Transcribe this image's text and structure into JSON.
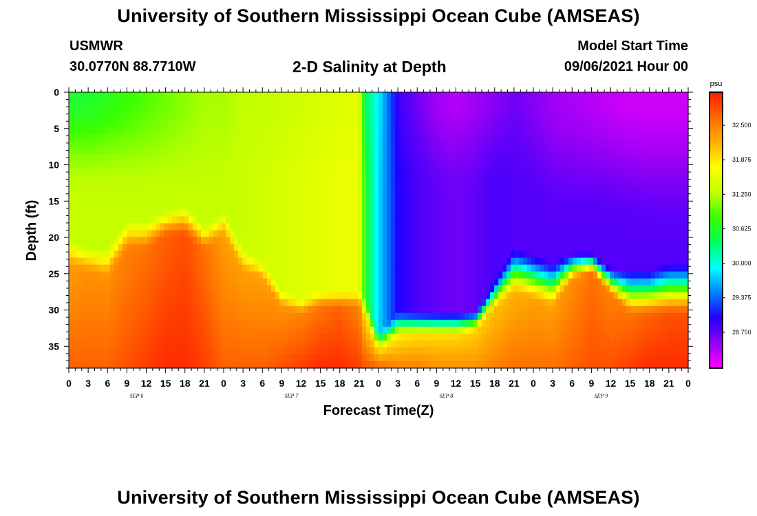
{
  "header": {
    "title": "University of Southern Mississippi Ocean Cube (AMSEAS)",
    "station": "USMWR",
    "coordinates": "30.0770N  88.7710W",
    "subtitle": "2-D Salinity at Depth",
    "model_start_label": "Model Start Time",
    "model_start_value": "09/06/2021 Hour 00"
  },
  "footer": {
    "title": "University of Southern Mississippi Ocean Cube (AMSEAS)"
  },
  "chart_data": {
    "type": "heatmap",
    "title": "2-D Salinity at Depth",
    "xlabel": "Forecast Time(Z)",
    "ylabel": "Depth (ft)",
    "x_tick_labels": [
      "0",
      "3",
      "6",
      "9",
      "12",
      "15",
      "18",
      "21",
      "0",
      "3",
      "6",
      "9",
      "12",
      "15",
      "18",
      "21",
      "0",
      "3",
      "6",
      "9",
      "12",
      "15",
      "18",
      "21",
      "0",
      "3",
      "6",
      "9",
      "12",
      "15",
      "18",
      "21",
      "0"
    ],
    "x_range_hours": [
      0,
      96
    ],
    "date_labels": [
      {
        "label": "SEP 6",
        "hour": 10.5
      },
      {
        "label": "SEP 7",
        "hour": 34.5
      },
      {
        "label": "SEP 8",
        "hour": 58.5
      },
      {
        "label": "SEP 9",
        "hour": 82.5
      }
    ],
    "y_ticks": [
      0,
      5,
      10,
      15,
      20,
      25,
      30,
      35
    ],
    "y_range": [
      0,
      38
    ],
    "y_inverted": true,
    "colorbar": {
      "unit": "psu",
      "tick_labels": [
        "32.500",
        "31.875",
        "31.250",
        "30.625",
        "30.000",
        "29.375",
        "28.750"
      ],
      "tick_values": [
        32.5,
        31.875,
        31.25,
        30.625,
        30.0,
        29.375,
        28.75
      ],
      "range": [
        28.1,
        33.1
      ],
      "colors": [
        "#ff00ff",
        "#9400f5",
        "#2000ff",
        "#0080ff",
        "#00ffff",
        "#00ff60",
        "#3aff00",
        "#c0ff00",
        "#ffff00",
        "#ffb000",
        "#ff6a00",
        "#ff1a00"
      ]
    },
    "profile_hours": [
      0,
      3,
      6,
      9,
      12,
      15,
      18,
      21,
      24,
      27,
      30,
      33,
      36,
      39,
      42,
      45,
      46,
      48,
      51,
      54,
      57,
      60,
      63,
      66,
      69,
      72,
      75,
      78,
      81,
      84,
      87,
      90,
      93,
      96
    ],
    "salinity_profiles": [
      {
        "hour": 0,
        "surface": 30.6,
        "mid_depth": 14,
        "mid": 31.3,
        "top_depth": 20,
        "bottom_depth": 24,
        "bottom": 32.3,
        "deep": 32.7
      },
      {
        "hour": 3,
        "surface": 30.6,
        "mid_depth": 14,
        "mid": 31.3,
        "top_depth": 21,
        "bottom_depth": 25,
        "bottom": 32.4,
        "deep": 32.7
      },
      {
        "hour": 6,
        "surface": 30.7,
        "mid_depth": 14,
        "mid": 31.3,
        "top_depth": 21,
        "bottom_depth": 26,
        "bottom": 32.4,
        "deep": 32.7
      },
      {
        "hour": 9,
        "surface": 30.8,
        "mid_depth": 14,
        "mid": 31.3,
        "top_depth": 17,
        "bottom_depth": 22,
        "bottom": 32.5,
        "deep": 32.8
      },
      {
        "hour": 12,
        "surface": 30.9,
        "mid_depth": 14,
        "mid": 31.3,
        "top_depth": 17,
        "bottom_depth": 22,
        "bottom": 32.6,
        "deep": 32.9
      },
      {
        "hour": 15,
        "surface": 31.0,
        "mid_depth": 14,
        "mid": 31.3,
        "top_depth": 16,
        "bottom_depth": 20,
        "bottom": 32.7,
        "deep": 33.0
      },
      {
        "hour": 18,
        "surface": 31.1,
        "mid_depth": 14,
        "mid": 31.3,
        "top_depth": 15,
        "bottom_depth": 20,
        "bottom": 32.8,
        "deep": 33.0
      },
      {
        "hour": 21,
        "surface": 31.2,
        "mid_depth": 14,
        "mid": 31.3,
        "top_depth": 18,
        "bottom_depth": 22,
        "bottom": 32.6,
        "deep": 32.9
      },
      {
        "hour": 24,
        "surface": 31.2,
        "mid_depth": 14,
        "mid": 31.3,
        "top_depth": 16,
        "bottom_depth": 20,
        "bottom": 32.3,
        "deep": 32.7
      },
      {
        "hour": 27,
        "surface": 31.3,
        "mid_depth": 14,
        "mid": 31.35,
        "top_depth": 21,
        "bottom_depth": 25,
        "bottom": 32.3,
        "deep": 32.7
      },
      {
        "hour": 30,
        "surface": 31.3,
        "mid_depth": 14,
        "mid": 31.4,
        "top_depth": 23,
        "bottom_depth": 26,
        "bottom": 32.3,
        "deep": 32.7
      },
      {
        "hour": 33,
        "surface": 31.35,
        "mid_depth": 14,
        "mid": 31.45,
        "top_depth": 27,
        "bottom_depth": 30,
        "bottom": 32.4,
        "deep": 32.8
      },
      {
        "hour": 36,
        "surface": 31.4,
        "mid_depth": 14,
        "mid": 31.5,
        "top_depth": 28,
        "bottom_depth": 31,
        "bottom": 32.5,
        "deep": 32.9
      },
      {
        "hour": 39,
        "surface": 31.45,
        "mid_depth": 14,
        "mid": 31.55,
        "top_depth": 27,
        "bottom_depth": 30,
        "bottom": 32.6,
        "deep": 33.0
      },
      {
        "hour": 42,
        "surface": 31.5,
        "mid_depth": 14,
        "mid": 31.6,
        "top_depth": 27,
        "bottom_depth": 30,
        "bottom": 32.7,
        "deep": 33.0
      },
      {
        "hour": 45,
        "surface": 31.55,
        "mid_depth": 14,
        "mid": 31.6,
        "top_depth": 27,
        "bottom_depth": 30,
        "bottom": 32.5,
        "deep": 32.9
      },
      {
        "hour": 46,
        "surface": 30.4,
        "mid_depth": 14,
        "mid": 30.7,
        "top_depth": 28,
        "bottom_depth": 31,
        "bottom": 31.9,
        "deep": 32.8
      },
      {
        "hour": 48,
        "surface": 29.9,
        "mid_depth": 14,
        "mid": 29.8,
        "top_depth": 33,
        "bottom_depth": 36,
        "bottom": 32.0,
        "deep": 32.7
      },
      {
        "hour": 51,
        "surface": 28.9,
        "mid_depth": 14,
        "mid": 29.0,
        "top_depth": 30,
        "bottom_depth": 34,
        "bottom": 31.9,
        "deep": 32.5
      },
      {
        "hour": 54,
        "surface": 28.7,
        "mid_depth": 14,
        "mid": 28.85,
        "top_depth": 30,
        "bottom_depth": 34,
        "bottom": 32.0,
        "deep": 32.5
      },
      {
        "hour": 57,
        "surface": 28.5,
        "mid_depth": 14,
        "mid": 28.75,
        "top_depth": 30,
        "bottom_depth": 34,
        "bottom": 32.0,
        "deep": 32.4
      },
      {
        "hour": 60,
        "surface": 28.4,
        "mid_depth": 14,
        "mid": 28.7,
        "top_depth": 30,
        "bottom_depth": 34,
        "bottom": 32.0,
        "deep": 32.4
      },
      {
        "hour": 63,
        "surface": 28.5,
        "mid_depth": 14,
        "mid": 28.75,
        "top_depth": 30,
        "bottom_depth": 33,
        "bottom": 32.0,
        "deep": 32.4
      },
      {
        "hour": 66,
        "surface": 28.6,
        "mid_depth": 14,
        "mid": 28.85,
        "top_depth": 26,
        "bottom_depth": 30,
        "bottom": 32.1,
        "deep": 32.5
      },
      {
        "hour": 69,
        "surface": 28.7,
        "mid_depth": 12,
        "mid": 28.8,
        "top_depth": 21,
        "bottom_depth": 28,
        "bottom": 32.2,
        "deep": 32.6
      },
      {
        "hour": 72,
        "surface": 28.6,
        "mid_depth": 14,
        "mid": 28.8,
        "top_depth": 22,
        "bottom_depth": 29,
        "bottom": 32.3,
        "deep": 32.6
      },
      {
        "hour": 75,
        "surface": 28.5,
        "mid_depth": 18,
        "mid": 28.8,
        "top_depth": 23,
        "bottom_depth": 30,
        "bottom": 32.3,
        "deep": 32.6
      },
      {
        "hour": 78,
        "surface": 28.45,
        "mid_depth": 18,
        "mid": 28.8,
        "top_depth": 22,
        "bottom_depth": 26,
        "bottom": 32.4,
        "deep": 32.7
      },
      {
        "hour": 81,
        "surface": 28.4,
        "mid_depth": 18,
        "mid": 28.8,
        "top_depth": 22,
        "bottom_depth": 25,
        "bottom": 32.6,
        "deep": 32.8
      },
      {
        "hour": 84,
        "surface": 28.35,
        "mid_depth": 18,
        "mid": 28.8,
        "top_depth": 24,
        "bottom_depth": 28,
        "bottom": 32.5,
        "deep": 32.8
      },
      {
        "hour": 87,
        "surface": 28.3,
        "mid_depth": 19,
        "mid": 28.8,
        "top_depth": 24,
        "bottom_depth": 31,
        "bottom": 32.6,
        "deep": 32.9
      },
      {
        "hour": 90,
        "surface": 28.3,
        "mid_depth": 20,
        "mid": 28.8,
        "top_depth": 24,
        "bottom_depth": 31,
        "bottom": 32.7,
        "deep": 33.0
      },
      {
        "hour": 93,
        "surface": 28.3,
        "mid_depth": 20,
        "mid": 28.8,
        "top_depth": 23,
        "bottom_depth": 31,
        "bottom": 32.8,
        "deep": 33.0
      },
      {
        "hour": 96,
        "surface": 28.3,
        "mid_depth": 20,
        "mid": 28.8,
        "top_depth": 23,
        "bottom_depth": 31,
        "bottom": 32.8,
        "deep": 33.0
      }
    ]
  }
}
